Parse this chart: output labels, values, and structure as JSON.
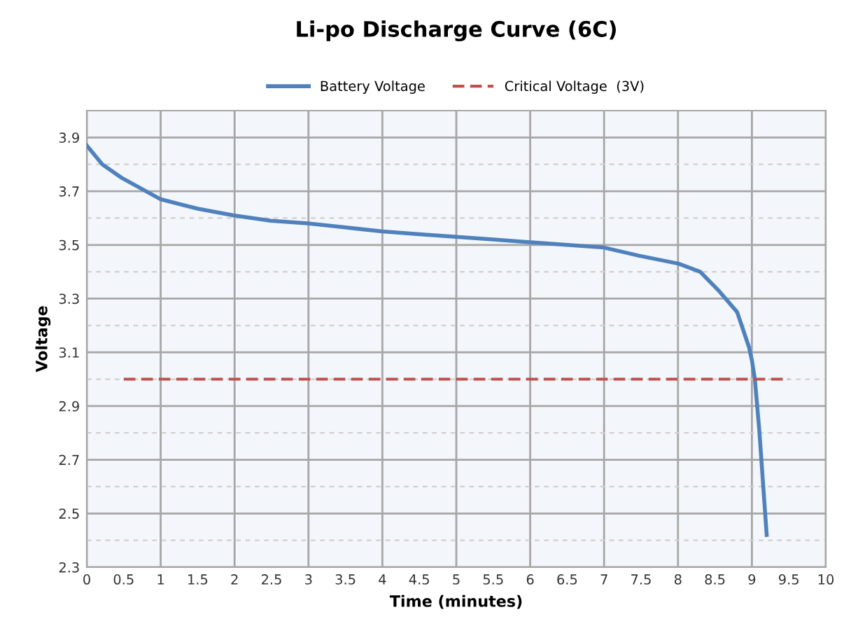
{
  "chart_data": {
    "type": "line",
    "title": "Li-po Discharge Curve (6C)",
    "xlabel": "Time (minutes)",
    "ylabel": "Voltage",
    "series": [
      {
        "name": "Battery Voltage",
        "color": "#4f81bd",
        "line_style": "solid",
        "x": [
          0,
          0.21,
          0.47,
          1.0,
          1.5,
          1.98,
          2.49,
          2.99,
          3.5,
          4.0,
          4.5,
          5.0,
          5.5,
          6.0,
          6.5,
          7.0,
          7.47,
          8.01,
          8.3,
          8.55,
          8.8,
          8.96,
          9.0,
          9.04,
          9.1,
          9.2
        ],
        "values": [
          3.87,
          3.8,
          3.75,
          3.67,
          3.635,
          3.61,
          3.59,
          3.58,
          3.565,
          3.55,
          3.54,
          3.53,
          3.52,
          3.51,
          3.5,
          3.49,
          3.46,
          3.43,
          3.4,
          3.33,
          3.25,
          3.12,
          3.07,
          3.0,
          2.81,
          2.42
        ]
      },
      {
        "name": "Critical Voltage  (3V)",
        "color": "#c0504d",
        "line_style": "dashed",
        "x": [
          0.5,
          9.5
        ],
        "values": [
          3.0,
          3.0
        ]
      }
    ],
    "xlim": [
      0,
      10
    ],
    "xticks": [
      0,
      0.5,
      1,
      1.5,
      2,
      2.5,
      3,
      3.5,
      4,
      4.5,
      5,
      5.5,
      6,
      6.5,
      7,
      7.5,
      8,
      8.5,
      9,
      9.5,
      10
    ],
    "ylim": [
      2.3,
      4.0
    ],
    "yticks": [
      2.3,
      {
        "value": 2.4,
        "label": null
      },
      2.5,
      {
        "value": 2.6,
        "label": null
      },
      2.7,
      {
        "value": 2.8,
        "label": null
      },
      2.9,
      {
        "value": 3.0,
        "label": null
      },
      3.1,
      {
        "value": 3.2,
        "label": null
      },
      3.3,
      {
        "value": 3.4,
        "label": null
      },
      3.5,
      {
        "value": 3.6,
        "label": null
      },
      3.7,
      {
        "value": 3.8,
        "label": null
      },
      3.9
    ],
    "grid": true,
    "legend": "top",
    "marker": "none"
  }
}
